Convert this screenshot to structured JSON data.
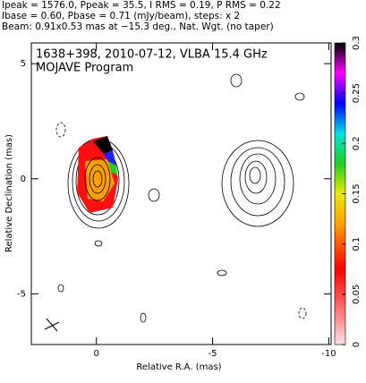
{
  "chart_data": {
    "type": "contour",
    "header": [
      "Ipeak = 1576.0, Ppeak = 35.5, I RMS = 0.19, P RMS = 0.22",
      "Ibase = 0.60, Pbase = 0.71 (mJy/beam), steps: x 2",
      "Beam: 0.91x0.53 mas at −15.3 deg., Nat. Wgt. (no taper)"
    ],
    "title": "1638+398, 2010-07-12, VLBA 15.4 GHz",
    "subtitle": "MOJAVE Program",
    "x_label": "Relative R.A. (mas)",
    "y_label": "Relative Declination (mas)",
    "xlim": [
      2.8,
      -10.1
    ],
    "xticks": [
      0,
      -5,
      -10
    ],
    "ylim": [
      -7.2,
      5.9
    ],
    "yticks": [
      -5,
      0,
      5
    ],
    "colorbar_lim": [
      0,
      0.3
    ],
    "colorbar_ticks": [
      0,
      0.05,
      0.1,
      0.15,
      0.2,
      0.25,
      0.3
    ]
  }
}
